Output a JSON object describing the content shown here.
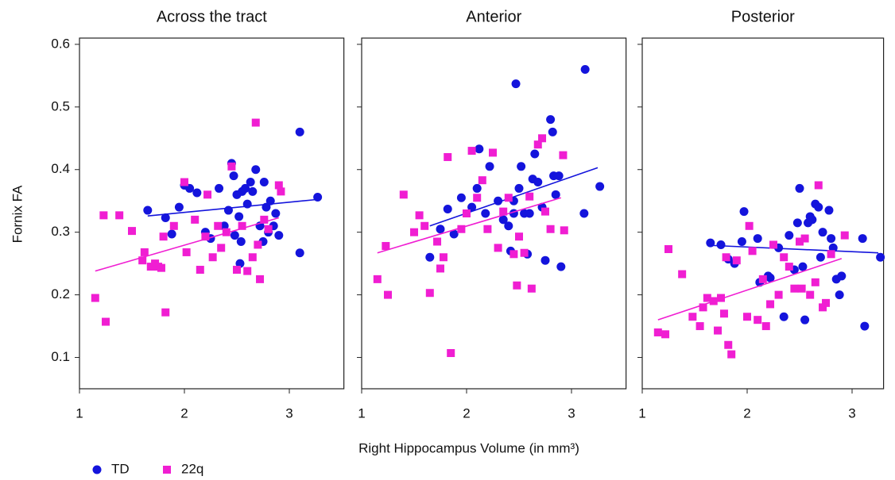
{
  "chart_data": [
    {
      "type": "scatter",
      "title": "Across the tract",
      "ylabel": "Fornix FA",
      "xlim": [
        1,
        3.52
      ],
      "xticks": [
        1,
        2,
        3
      ],
      "ylim": [
        0.05,
        0.61
      ],
      "yticks": [
        0.1,
        0.2,
        0.3,
        0.4,
        0.5,
        0.6
      ],
      "show_ytick_labels": true,
      "legend": "bottom-left",
      "series": [
        {
          "name": "TD",
          "color": "#1414dc",
          "marker": "circle",
          "x": [
            1.65,
            1.82,
            1.88,
            1.95,
            2.0,
            2.05,
            2.12,
            2.2,
            2.25,
            2.33,
            2.38,
            2.42,
            2.45,
            2.47,
            2.48,
            2.5,
            2.52,
            2.54,
            2.55,
            2.58,
            2.6,
            2.63,
            2.65,
            2.68,
            2.72,
            2.76,
            2.78,
            2.8,
            2.82,
            2.85,
            2.87,
            2.9,
            3.1,
            3.1,
            3.27,
            2.53,
            2.75
          ],
          "values": [
            0.335,
            0.323,
            0.297,
            0.34,
            0.375,
            0.37,
            0.363,
            0.3,
            0.29,
            0.37,
            0.31,
            0.335,
            0.41,
            0.39,
            0.295,
            0.36,
            0.325,
            0.285,
            0.365,
            0.37,
            0.345,
            0.38,
            0.365,
            0.4,
            0.31,
            0.38,
            0.34,
            0.3,
            0.35,
            0.31,
            0.33,
            0.295,
            0.46,
            0.267,
            0.356,
            0.25,
            0.285
          ],
          "fit_x": [
            1.65,
            3.25
          ],
          "fit_y": [
            0.326,
            0.352
          ]
        },
        {
          "name": "22q",
          "color": "#f01ed2",
          "marker": "square",
          "x": [
            1.15,
            1.23,
            1.25,
            1.38,
            1.5,
            1.6,
            1.62,
            1.68,
            1.72,
            1.75,
            1.78,
            1.8,
            1.82,
            1.9,
            2.0,
            2.02,
            2.1,
            2.15,
            2.2,
            2.22,
            2.27,
            2.32,
            2.35,
            2.4,
            2.45,
            2.5,
            2.55,
            2.6,
            2.65,
            2.68,
            2.7,
            2.72,
            2.76,
            2.8,
            2.9,
            2.92
          ],
          "values": [
            0.195,
            0.327,
            0.157,
            0.327,
            0.302,
            0.255,
            0.268,
            0.245,
            0.25,
            0.245,
            0.243,
            0.293,
            0.172,
            0.31,
            0.38,
            0.268,
            0.32,
            0.24,
            0.293,
            0.36,
            0.26,
            0.31,
            0.275,
            0.3,
            0.405,
            0.24,
            0.31,
            0.238,
            0.26,
            0.475,
            0.28,
            0.225,
            0.32,
            0.305,
            0.375,
            0.365
          ],
          "fit_x": [
            1.15,
            2.9
          ],
          "fit_y": [
            0.238,
            0.323
          ]
        }
      ]
    },
    {
      "type": "scatter",
      "title": "Anterior",
      "xlabel": "Right Hippocampus Volume (in mm³)",
      "xlim": [
        1,
        3.52
      ],
      "xticks": [
        1,
        2,
        3
      ],
      "ylim": [
        0.05,
        0.61
      ],
      "yticks": [
        0.1,
        0.2,
        0.3,
        0.4,
        0.5,
        0.6
      ],
      "show_ytick_labels": false,
      "series": [
        {
          "name": "TD",
          "color": "#1414dc",
          "marker": "circle",
          "x": [
            1.65,
            1.75,
            1.82,
            1.88,
            1.95,
            2.05,
            2.1,
            2.12,
            2.18,
            2.22,
            2.3,
            2.35,
            2.4,
            2.42,
            2.45,
            2.47,
            2.5,
            2.52,
            2.55,
            2.58,
            2.6,
            2.63,
            2.65,
            2.68,
            2.72,
            2.75,
            2.8,
            2.82,
            2.83,
            2.85,
            2.88,
            2.9,
            3.12,
            3.13,
            3.27,
            2.45
          ],
          "values": [
            0.26,
            0.305,
            0.337,
            0.297,
            0.355,
            0.34,
            0.37,
            0.433,
            0.33,
            0.405,
            0.35,
            0.32,
            0.31,
            0.27,
            0.35,
            0.537,
            0.37,
            0.405,
            0.33,
            0.265,
            0.33,
            0.385,
            0.425,
            0.38,
            0.34,
            0.255,
            0.48,
            0.46,
            0.39,
            0.36,
            0.39,
            0.245,
            0.33,
            0.56,
            0.373,
            0.33
          ],
          "fit_x": [
            1.65,
            3.25
          ],
          "fit_y": [
            0.31,
            0.403
          ]
        },
        {
          "name": "22q",
          "color": "#f01ed2",
          "marker": "square",
          "x": [
            1.15,
            1.23,
            1.25,
            1.4,
            1.5,
            1.55,
            1.6,
            1.65,
            1.72,
            1.75,
            1.78,
            1.82,
            1.85,
            1.95,
            2.0,
            2.05,
            2.1,
            2.15,
            2.2,
            2.25,
            2.3,
            2.35,
            2.4,
            2.45,
            2.48,
            2.5,
            2.55,
            2.6,
            2.62,
            2.68,
            2.72,
            2.75,
            2.8,
            2.92,
            2.93
          ],
          "values": [
            0.225,
            0.278,
            0.2,
            0.36,
            0.3,
            0.327,
            0.31,
            0.203,
            0.285,
            0.242,
            0.26,
            0.42,
            0.107,
            0.305,
            0.33,
            0.43,
            0.355,
            0.383,
            0.305,
            0.427,
            0.275,
            0.333,
            0.355,
            0.265,
            0.215,
            0.293,
            0.267,
            0.357,
            0.21,
            0.44,
            0.45,
            0.333,
            0.305,
            0.423,
            0.303
          ],
          "fit_x": [
            1.15,
            2.9
          ],
          "fit_y": [
            0.267,
            0.355
          ]
        }
      ]
    },
    {
      "type": "scatter",
      "title": "Posterior",
      "xlim": [
        1,
        3.3
      ],
      "xticks": [
        1,
        2,
        3
      ],
      "ylim": [
        0.05,
        0.61
      ],
      "yticks": [
        0.1,
        0.2,
        0.3,
        0.4,
        0.5,
        0.6
      ],
      "show_ytick_labels": false,
      "series": [
        {
          "name": "TD",
          "color": "#1414dc",
          "marker": "circle",
          "x": [
            1.65,
            1.75,
            1.82,
            1.88,
            1.95,
            1.97,
            2.1,
            2.12,
            2.2,
            2.22,
            2.3,
            2.35,
            2.4,
            2.45,
            2.48,
            2.5,
            2.53,
            2.55,
            2.58,
            2.6,
            2.62,
            2.65,
            2.68,
            2.7,
            2.72,
            2.78,
            2.8,
            2.82,
            2.85,
            2.88,
            2.9,
            3.1,
            3.12,
            3.27
          ],
          "values": [
            0.283,
            0.28,
            0.257,
            0.25,
            0.285,
            0.333,
            0.29,
            0.22,
            0.23,
            0.227,
            0.275,
            0.165,
            0.295,
            0.24,
            0.315,
            0.37,
            0.245,
            0.16,
            0.315,
            0.325,
            0.32,
            0.345,
            0.34,
            0.26,
            0.3,
            0.335,
            0.29,
            0.275,
            0.225,
            0.2,
            0.23,
            0.29,
            0.15,
            0.26
          ],
          "fit_x": [
            1.65,
            3.25
          ],
          "fit_y": [
            0.279,
            0.267
          ]
        },
        {
          "name": "22q",
          "color": "#f01ed2",
          "marker": "square",
          "x": [
            1.15,
            1.22,
            1.25,
            1.38,
            1.48,
            1.55,
            1.58,
            1.62,
            1.68,
            1.72,
            1.75,
            1.78,
            1.8,
            1.82,
            1.85,
            1.9,
            2.0,
            2.02,
            2.05,
            2.1,
            2.15,
            2.18,
            2.22,
            2.25,
            2.3,
            2.35,
            2.4,
            2.45,
            2.5,
            2.52,
            2.55,
            2.6,
            2.65,
            2.68,
            2.72,
            2.75,
            2.8,
            2.93
          ],
          "values": [
            0.14,
            0.137,
            0.273,
            0.233,
            0.165,
            0.15,
            0.18,
            0.195,
            0.19,
            0.143,
            0.195,
            0.17,
            0.26,
            0.12,
            0.105,
            0.255,
            0.165,
            0.31,
            0.27,
            0.16,
            0.225,
            0.15,
            0.185,
            0.28,
            0.2,
            0.26,
            0.245,
            0.21,
            0.285,
            0.21,
            0.29,
            0.2,
            0.22,
            0.375,
            0.18,
            0.187,
            0.265,
            0.295
          ],
          "fit_x": [
            1.15,
            2.9
          ],
          "fit_y": [
            0.16,
            0.258
          ]
        }
      ]
    }
  ]
}
